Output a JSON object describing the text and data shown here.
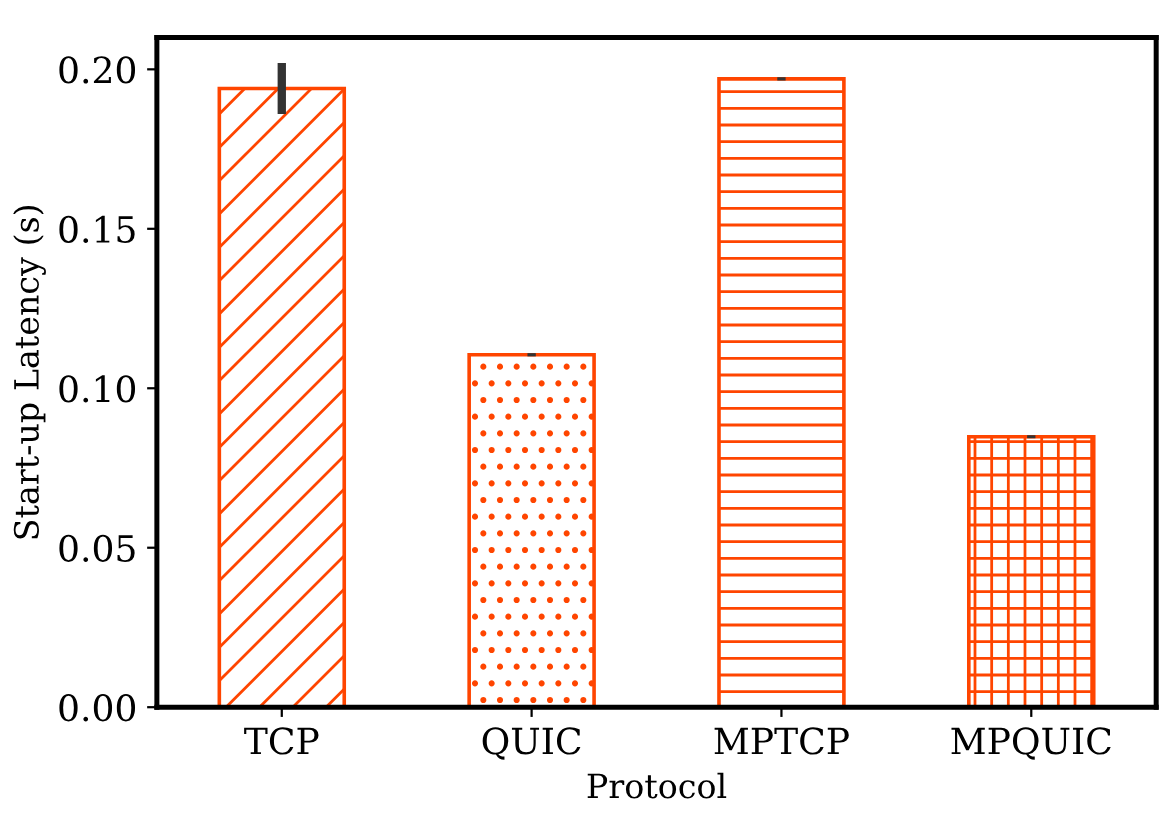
{
  "chart_data": {
    "type": "bar",
    "xlabel": "Protocol",
    "ylabel": "Start-up Latency (s)",
    "categories": [
      "TCP",
      "QUIC",
      "MPTCP",
      "MPQUIC"
    ],
    "values": [
      0.194,
      0.1105,
      0.197,
      0.0848
    ],
    "errors": [
      0.008,
      0.0005,
      0.0005,
      0.0005
    ],
    "color": "#ff4500",
    "ylim": [
      0,
      0.21
    ],
    "yticks": [
      {
        "value": 0,
        "label": "0.00"
      },
      0.05,
      {
        "value": 0.1,
        "label": "0.10"
      },
      0.15,
      {
        "value": 0.2,
        "label": "0.20"
      }
    ],
    "grid": false,
    "legend": false
  }
}
